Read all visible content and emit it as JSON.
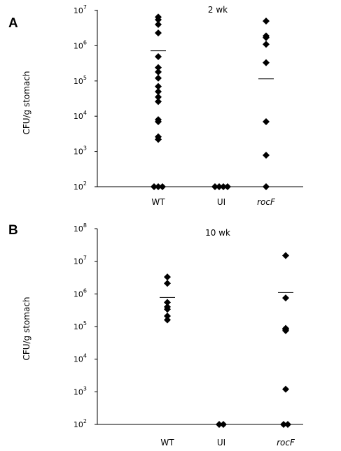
{
  "chart_data": [
    {
      "panel": "A",
      "type": "scatter",
      "title": "2 wk",
      "ylabel": "CFU/g stomach",
      "yscale": "log",
      "ylim": [
        100,
        10000000
      ],
      "ytick_exponents": [
        2,
        3,
        4,
        5,
        6,
        7
      ],
      "categories": [
        "WT",
        "UI",
        "rocF"
      ],
      "category_italic": [
        false,
        false,
        true
      ],
      "grid": false,
      "points": [
        [
          6500000,
          5500000,
          4000000,
          2300000,
          490000,
          240000,
          180000,
          120000,
          70000,
          50000,
          35000,
          26000,
          8000,
          7000,
          2600,
          2200,
          100,
          100,
          100
        ],
        [
          100,
          100,
          100,
          100
        ],
        [
          5000000,
          1900000,
          1700000,
          1100000,
          330000,
          7000,
          780,
          100
        ]
      ],
      "means": [
        720000,
        null,
        115000
      ]
    },
    {
      "panel": "B",
      "type": "scatter",
      "title": "10 wk",
      "ylabel": "CFU/g stomach",
      "yscale": "log",
      "ylim": [
        100,
        100000000
      ],
      "ytick_exponents": [
        2,
        3,
        4,
        5,
        6,
        7,
        8
      ],
      "categories": [
        "WT",
        "UI",
        "rocF"
      ],
      "category_italic": [
        false,
        false,
        true
      ],
      "grid": false,
      "points": [
        [
          3300000,
          2100000,
          550000,
          400000,
          340000,
          210000,
          160000
        ],
        [
          100,
          100
        ],
        [
          15000000,
          750000,
          88000,
          82000,
          75000,
          1200,
          100,
          100
        ]
      ],
      "means": [
        780000,
        null,
        1100000
      ]
    }
  ]
}
